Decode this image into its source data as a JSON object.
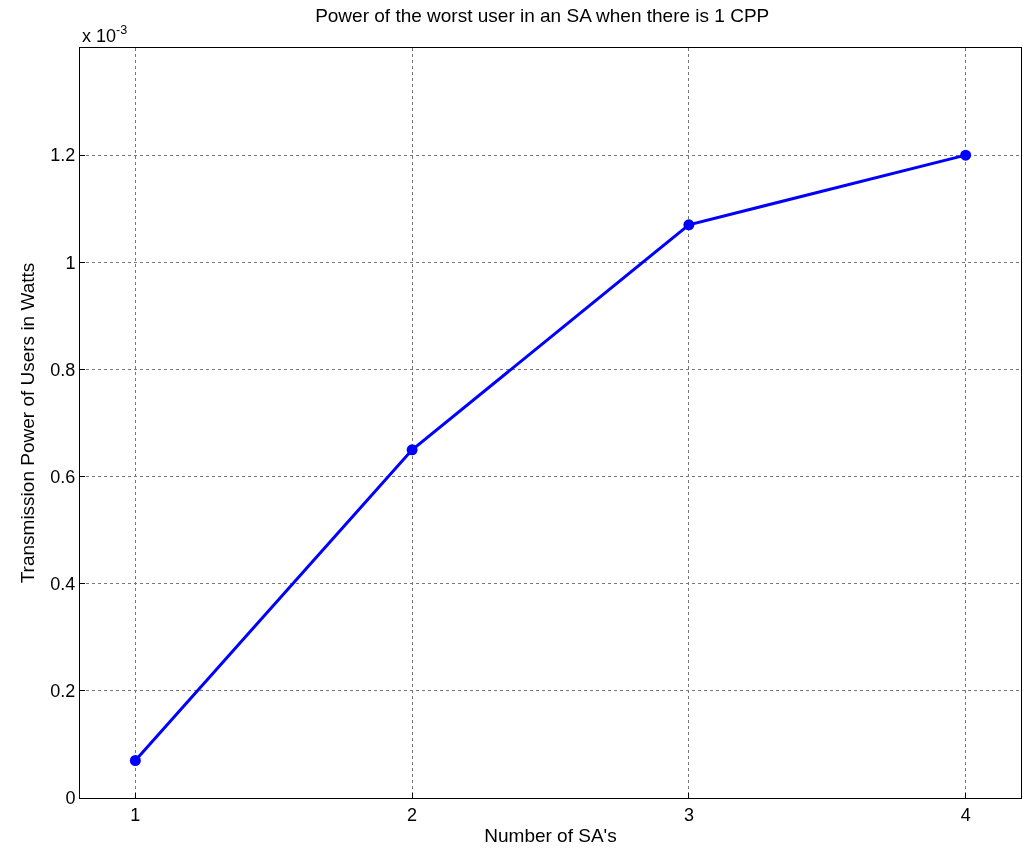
{
  "chart_data": {
    "type": "line",
    "title": "Power of the worst user in an SA when there is 1 CPP",
    "xlabel": "Number of SA's",
    "ylabel": "Transmission Power of Users in Watts",
    "annotations": [
      "x 10$^{-3}$"
    ],
    "x": [
      1,
      2,
      3,
      4
    ],
    "series": [
      {
        "color": "#0000ff",
        "values": [
          0.07,
          0.65,
          1.07,
          1.2
        ]
      }
    ],
    "xlim": [
      0.8,
      4.2
    ],
    "xticks": [
      1,
      2,
      3,
      4
    ],
    "ylim": [
      0,
      1.4
    ],
    "yticks": [
      0,
      0.2,
      0.4,
      0.6,
      0.8,
      1,
      1.2
    ],
    "grid": true,
    "marker": "circle",
    "line_style": "solid"
  }
}
